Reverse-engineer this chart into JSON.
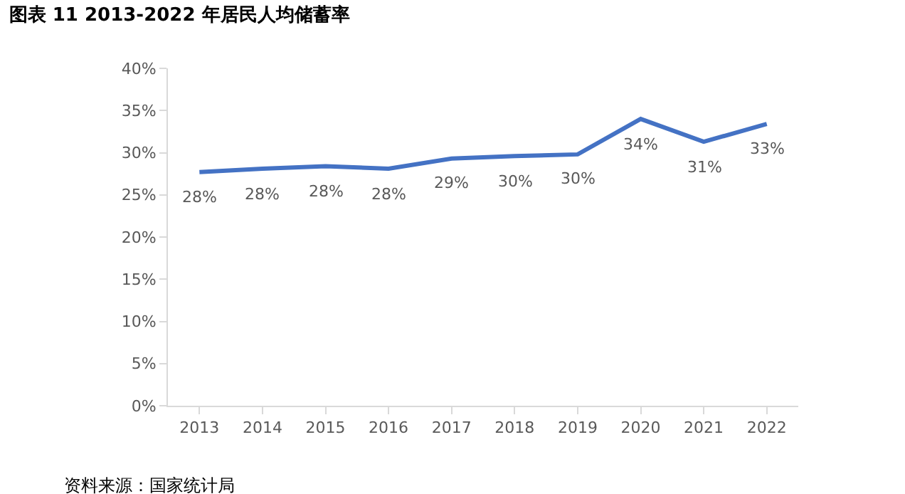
{
  "chart_data": {
    "type": "line",
    "title": "图表 11 2013-2022 年居民人均储蓄率",
    "categories": [
      "2013",
      "2014",
      "2015",
      "2016",
      "2017",
      "2018",
      "2019",
      "2020",
      "2021",
      "2022"
    ],
    "series": [
      {
        "color": "#4472c4",
        "values": [
          27.7,
          28.1,
          28.4,
          28.1,
          29.3,
          29.6,
          29.8,
          34.0,
          31.3,
          33.4
        ],
        "value_labels": [
          "28%",
          "28%",
          "28%",
          "28%",
          "29%",
          "30%",
          "30%",
          "34%",
          "31%",
          "33%"
        ]
      }
    ],
    "ylim": [
      0,
      40
    ],
    "yticks": [
      {
        "value": 0,
        "label": "0%"
      },
      {
        "value": 5,
        "label": "5%"
      },
      {
        "value": 10,
        "label": "10%"
      },
      {
        "value": 15,
        "label": "15%"
      },
      {
        "value": 20,
        "label": "20%"
      },
      {
        "value": 25,
        "label": "25%"
      },
      {
        "value": 30,
        "label": "30%"
      },
      {
        "value": 35,
        "label": "35%"
      },
      {
        "value": 40,
        "label": "40%"
      }
    ],
    "legend": false,
    "marker": "none",
    "line_style": "solid",
    "annotations": [
      "资料来源：国家统计局"
    ]
  }
}
